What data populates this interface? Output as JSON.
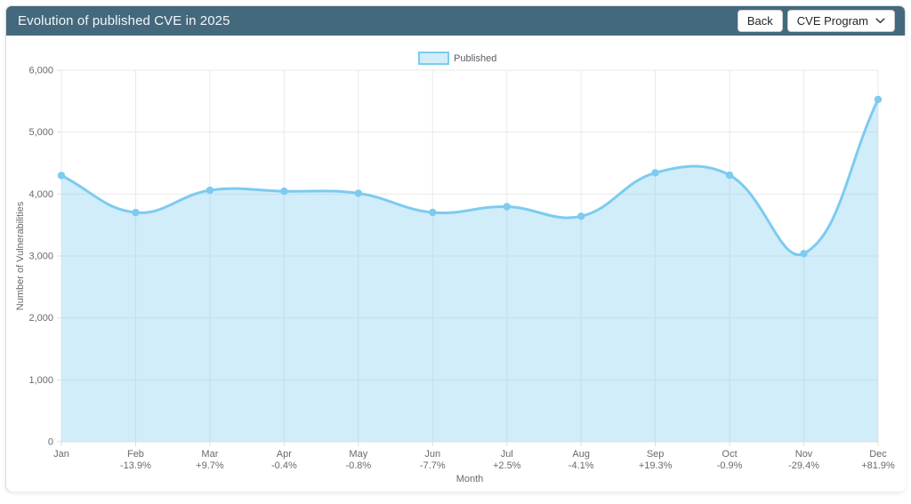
{
  "header": {
    "title": "Evolution of published CVE in 2025",
    "back_button": "Back",
    "program_dropdown": "CVE Program",
    "bg_color": "#44697d"
  },
  "chart_data": {
    "type": "area",
    "title": "Evolution of published CVE in 2025",
    "legend_entries": [
      "Published"
    ],
    "legend_position": "top-center",
    "xlabel": "Month",
    "ylabel": "Number of Vulnerabilities",
    "ylim": [
      0,
      6000
    ],
    "yticks": [
      0,
      1000,
      2000,
      3000,
      4000,
      5000,
      6000
    ],
    "grid": true,
    "categories": [
      "Jan",
      "Feb",
      "Mar",
      "Apr",
      "May",
      "Jun",
      "Jul",
      "Aug",
      "Sep",
      "Oct",
      "Nov",
      "Dec"
    ],
    "pct_change": [
      "",
      "-13.9%",
      "+9.7%",
      "-0.4%",
      "-0.8%",
      "-7.7%",
      "+2.5%",
      "-4.1%",
      "+19.3%",
      "-0.9%",
      "-29.4%",
      "+81.9%"
    ],
    "series": [
      {
        "name": "Published",
        "values": [
          4300,
          3702,
          4061,
          4045,
          4013,
          3704,
          3797,
          3641,
          4344,
          4305,
          3039,
          5528
        ]
      }
    ],
    "colors": {
      "line": "#7ccbf0",
      "fill": "rgba(124, 203, 241, 0.35)",
      "point": "#7ccbf0",
      "grid": "#e9e9e9",
      "tick_mark": "#dcdcdc",
      "axis_text": "#666a6e"
    }
  }
}
